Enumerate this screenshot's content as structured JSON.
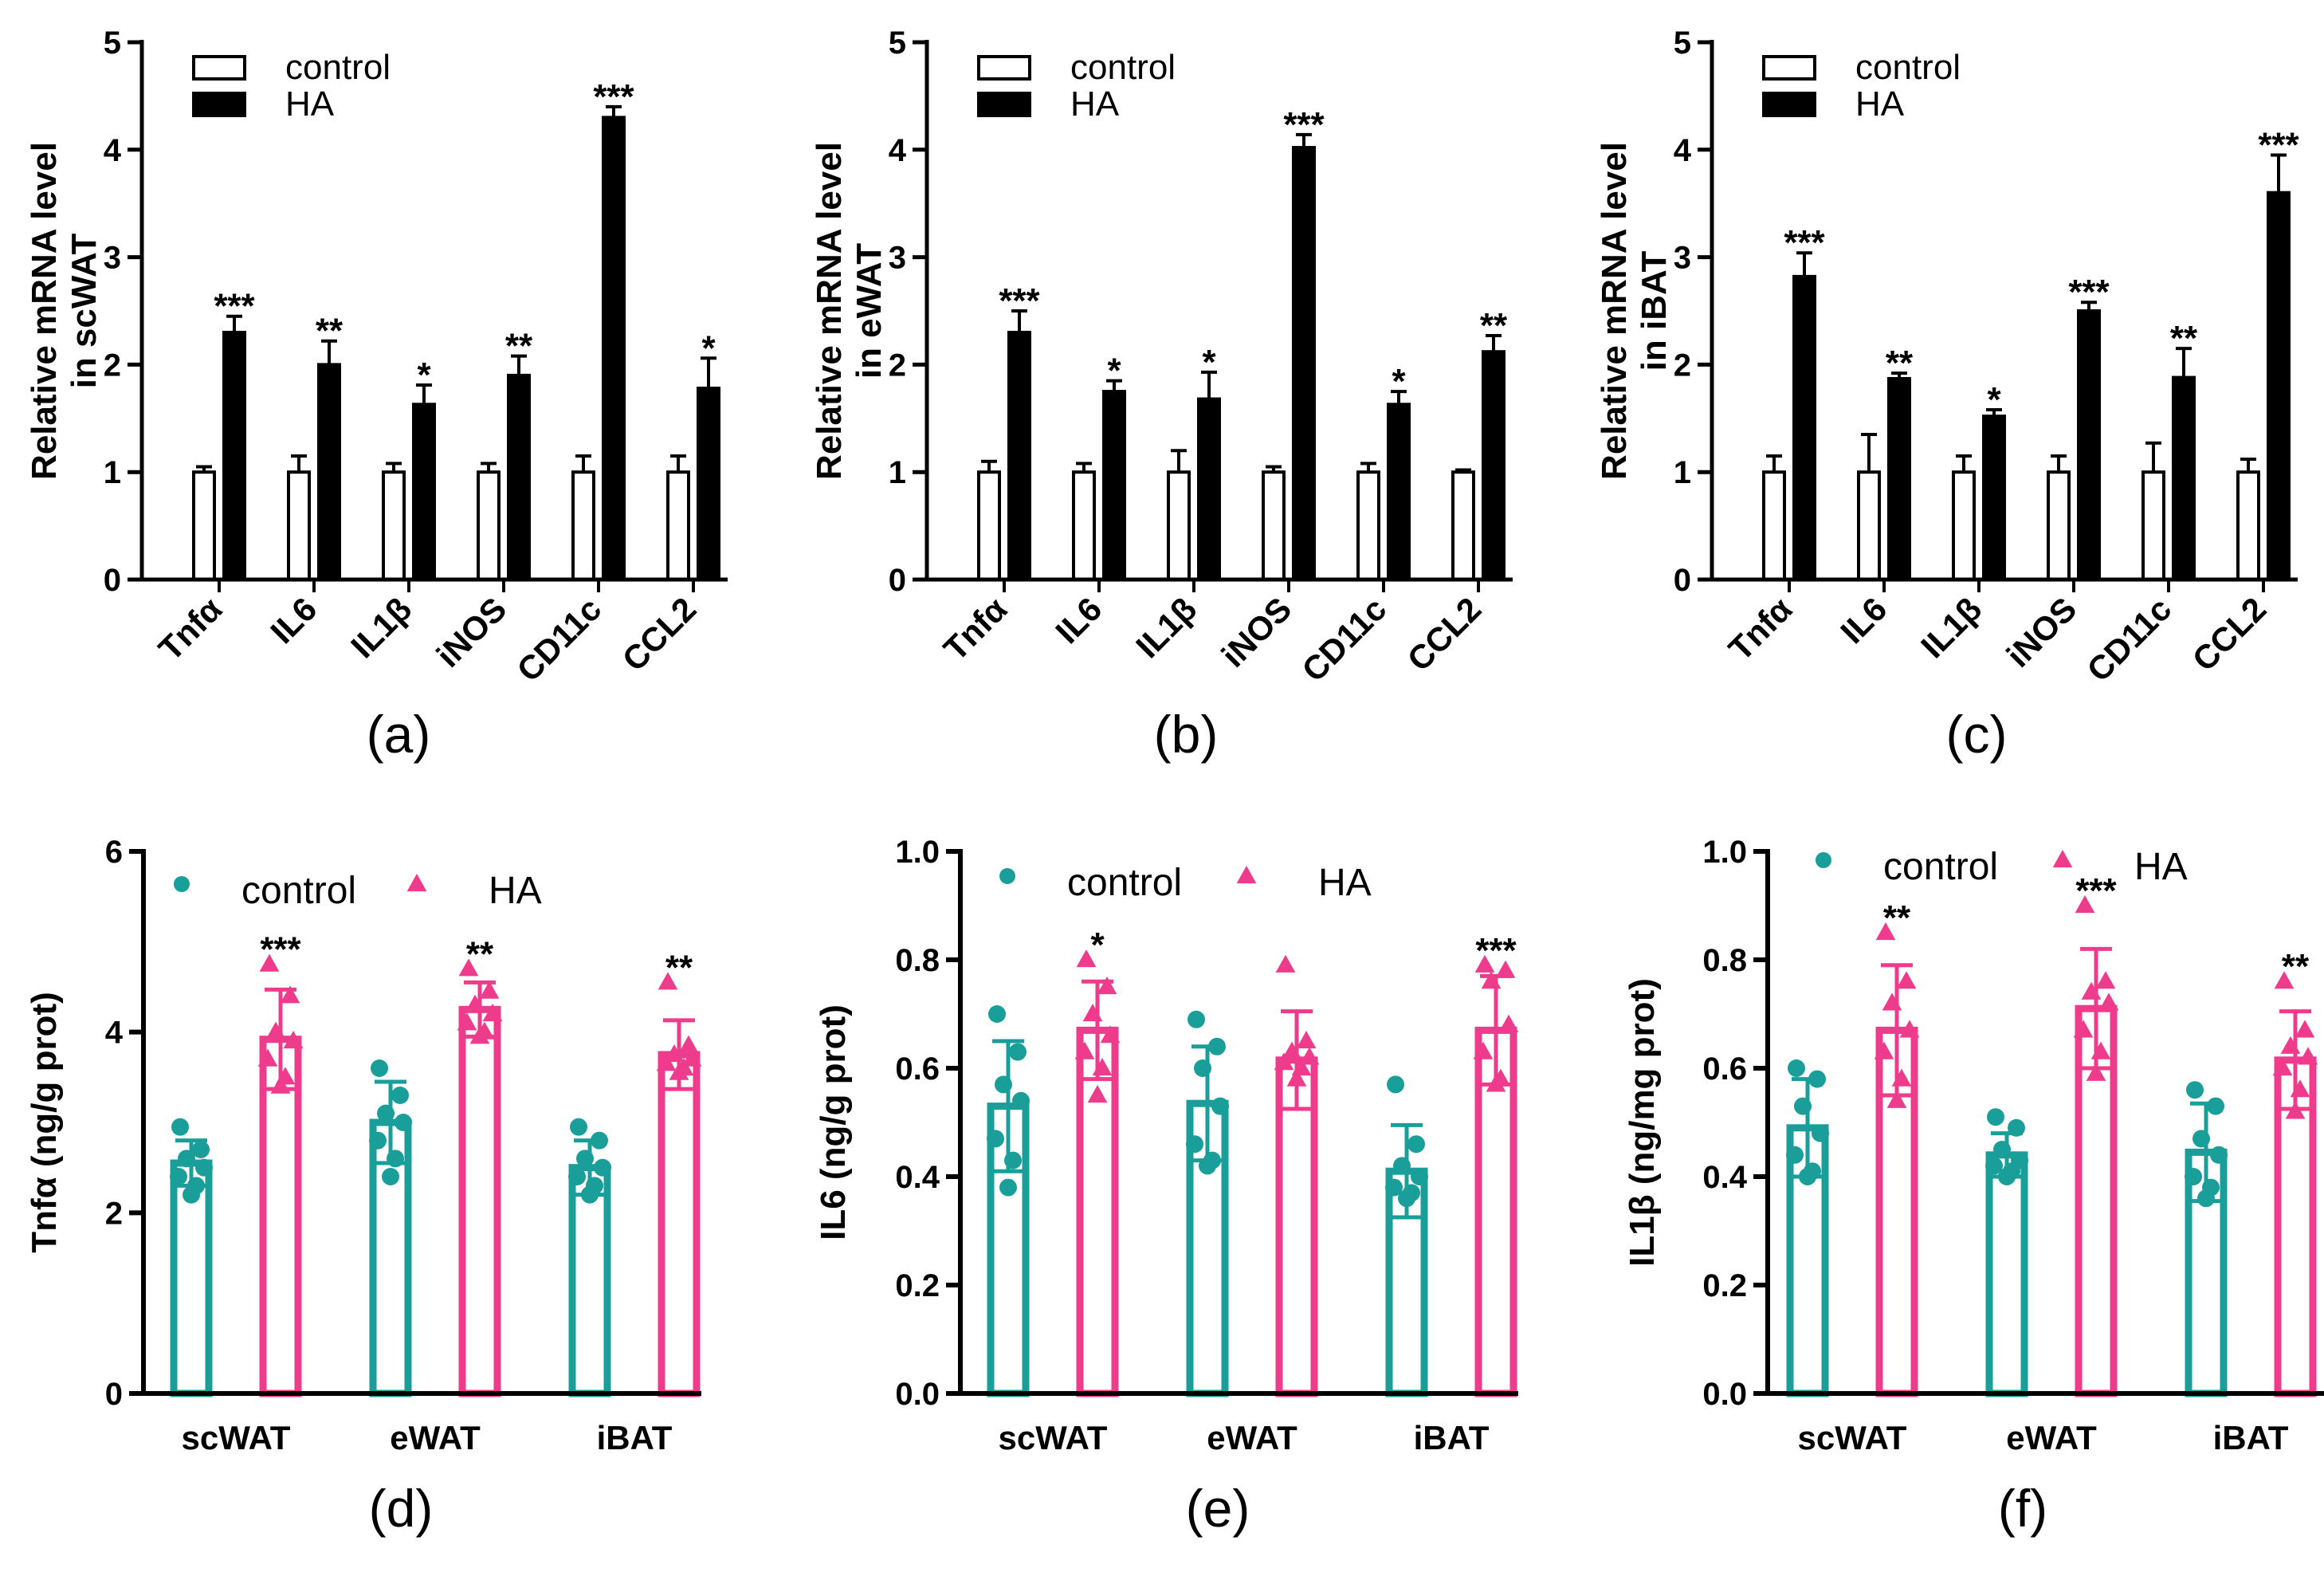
{
  "colors": {
    "control_bar": "#ffffff",
    "ha_bar": "#000000",
    "teal": "#1a9e9a",
    "pink": "#ee3b8c"
  },
  "chart_data": [
    {
      "panel": "(a)",
      "type": "bar",
      "ylabel": [
        "Relative mRNA level",
        "in scWAT"
      ],
      "ylim": [
        0,
        5
      ],
      "yticks": [
        "0",
        "1",
        "2",
        "3",
        "4",
        "5"
      ],
      "categories": [
        "Tnfα",
        "IL6",
        "IL1β",
        "iNOS",
        "CD11c",
        "CCL2"
      ],
      "legend": [
        "control",
        "HA"
      ],
      "series": [
        {
          "name": "control",
          "values": [
            1.0,
            1.0,
            1.0,
            1.0,
            1.0,
            1.0
          ],
          "errors": [
            0.05,
            0.15,
            0.08,
            0.08,
            0.15,
            0.15
          ]
        },
        {
          "name": "HA",
          "values": [
            2.3,
            2.0,
            1.63,
            1.9,
            4.3,
            1.78
          ],
          "errors": [
            0.15,
            0.22,
            0.18,
            0.18,
            0.1,
            0.28
          ]
        }
      ],
      "significance": [
        "***",
        "**",
        "*",
        "**",
        "***",
        "*"
      ]
    },
    {
      "panel": "(b)",
      "type": "bar",
      "ylabel": [
        "Relative mRNA level",
        "in eWAT"
      ],
      "ylim": [
        0,
        5
      ],
      "yticks": [
        "0",
        "1",
        "2",
        "3",
        "4",
        "5"
      ],
      "categories": [
        "Tnfα",
        "IL6",
        "IL1β",
        "iNOS",
        "CD11c",
        "CCL2"
      ],
      "legend": [
        "control",
        "HA"
      ],
      "series": [
        {
          "name": "control",
          "values": [
            1.0,
            1.0,
            1.0,
            1.0,
            1.0,
            1.0
          ],
          "errors": [
            0.1,
            0.08,
            0.2,
            0.05,
            0.08,
            0.02
          ]
        },
        {
          "name": "HA",
          "values": [
            2.3,
            1.75,
            1.68,
            4.02,
            1.63,
            2.12
          ],
          "errors": [
            0.2,
            0.1,
            0.25,
            0.12,
            0.12,
            0.15
          ]
        }
      ],
      "significance": [
        "***",
        "*",
        "*",
        "***",
        "*",
        "**"
      ]
    },
    {
      "panel": "(c)",
      "type": "bar",
      "ylabel": [
        "Relative mRNA level",
        "in iBAT"
      ],
      "ylim": [
        0,
        5
      ],
      "yticks": [
        "0",
        "1",
        "2",
        "3",
        "4",
        "5"
      ],
      "categories": [
        "Tnfα",
        "IL6",
        "IL1β",
        "iNOS",
        "CD11c",
        "CCL2"
      ],
      "legend": [
        "control",
        "HA"
      ],
      "series": [
        {
          "name": "control",
          "values": [
            1.0,
            1.0,
            1.0,
            1.0,
            1.0,
            1.0
          ],
          "errors": [
            0.15,
            0.35,
            0.15,
            0.15,
            0.27,
            0.12
          ]
        },
        {
          "name": "HA",
          "values": [
            2.82,
            1.87,
            1.52,
            2.5,
            1.88,
            3.6
          ],
          "errors": [
            0.22,
            0.05,
            0.06,
            0.08,
            0.27,
            0.35
          ]
        }
      ],
      "significance": [
        "***",
        "**",
        "*",
        "***",
        "**",
        "***"
      ]
    },
    {
      "panel": "(d)",
      "type": "bar",
      "ylabel": [
        "Tnfα (ng/g prot)"
      ],
      "ylim": [
        0,
        6
      ],
      "yticks": [
        "0",
        "2",
        "4",
        "6"
      ],
      "categories": [
        "scWAT",
        "eWAT",
        "iBAT"
      ],
      "legend": [
        "control",
        "HA"
      ],
      "series": [
        {
          "name": "control",
          "values": [
            2.55,
            3.0,
            2.5
          ],
          "errors": [
            0.25,
            0.45,
            0.3
          ],
          "points": [
            [
              2.95,
              2.7,
              2.6,
              2.5,
              2.4,
              2.3,
              2.2
            ],
            [
              3.6,
              3.3,
              3.1,
              3.0,
              2.8,
              2.6,
              2.4
            ],
            [
              2.95,
              2.8,
              2.6,
              2.5,
              2.4,
              2.3,
              2.2
            ]
          ]
        },
        {
          "name": "HA",
          "values": [
            3.92,
            4.25,
            3.75
          ],
          "errors": [
            0.55,
            0.3,
            0.38
          ],
          "points": [
            [
              4.75,
              4.4,
              4.0,
              3.9,
              3.7,
              3.5,
              3.4
            ],
            [
              4.7,
              4.45,
              4.3,
              4.2,
              4.1,
              4.0,
              3.95
            ],
            [
              4.55,
              3.85,
              3.75,
              3.7,
              3.65,
              3.6,
              3.55
            ]
          ]
        }
      ],
      "significance": [
        "***",
        "**",
        "**"
      ]
    },
    {
      "panel": "(e)",
      "type": "bar",
      "ylabel": [
        "IL6 (ng/g prot)"
      ],
      "ylim": [
        0,
        1.0
      ],
      "yticks": [
        "0.0",
        "0.2",
        "0.4",
        "0.6",
        "0.8",
        "1.0"
      ],
      "categories": [
        "scWAT",
        "eWAT",
        "iBAT"
      ],
      "legend": [
        "control",
        "HA"
      ],
      "series": [
        {
          "name": "control",
          "values": [
            0.53,
            0.535,
            0.41
          ],
          "errors": [
            0.12,
            0.105,
            0.085
          ],
          "points": [
            [
              0.7,
              0.63,
              0.57,
              0.54,
              0.47,
              0.43,
              0.38
            ],
            [
              0.69,
              0.64,
              0.6,
              0.53,
              0.46,
              0.43,
              0.42
            ],
            [
              0.57,
              0.46,
              0.42,
              0.4,
              0.38,
              0.37,
              0.36
            ]
          ]
        },
        {
          "name": "HA",
          "values": [
            0.67,
            0.615,
            0.67
          ],
          "errors": [
            0.09,
            0.09,
            0.1
          ],
          "points": [
            [
              0.8,
              0.75,
              0.7,
              0.66,
              0.63,
              0.6,
              0.55
            ],
            [
              0.79,
              0.65,
              0.63,
              0.62,
              0.61,
              0.6,
              0.58
            ],
            [
              0.79,
              0.78,
              0.76,
              0.68,
              0.63,
              0.58,
              0.57
            ]
          ]
        }
      ],
      "significance": [
        "*",
        "",
        "***"
      ]
    },
    {
      "panel": "(f)",
      "type": "bar",
      "ylabel": [
        "IL1β (ng/mg prot)"
      ],
      "ylim": [
        0,
        1.0
      ],
      "yticks": [
        "0.0",
        "0.2",
        "0.4",
        "0.6",
        "0.8",
        "1.0"
      ],
      "categories": [
        "scWAT",
        "eWAT",
        "iBAT"
      ],
      "legend": [
        "control",
        "HA"
      ],
      "series": [
        {
          "name": "control",
          "values": [
            0.49,
            0.44,
            0.445
          ],
          "errors": [
            0.09,
            0.04,
            0.09
          ],
          "points": [
            [
              0.6,
              0.58,
              0.53,
              0.48,
              0.44,
              0.41,
              0.4
            ],
            [
              0.51,
              0.49,
              0.45,
              0.43,
              0.42,
              0.41,
              0.4
            ],
            [
              0.56,
              0.53,
              0.47,
              0.44,
              0.4,
              0.38,
              0.36
            ]
          ]
        },
        {
          "name": "HA",
          "values": [
            0.67,
            0.71,
            0.615
          ],
          "errors": [
            0.12,
            0.11,
            0.09
          ],
          "points": [
            [
              0.85,
              0.76,
              0.72,
              0.67,
              0.63,
              0.58,
              0.54
            ],
            [
              0.9,
              0.76,
              0.74,
              0.72,
              0.67,
              0.63,
              0.59
            ],
            [
              0.76,
              0.67,
              0.64,
              0.62,
              0.6,
              0.56,
              0.52
            ]
          ]
        }
      ],
      "significance": [
        "**",
        "***",
        "**"
      ]
    }
  ]
}
